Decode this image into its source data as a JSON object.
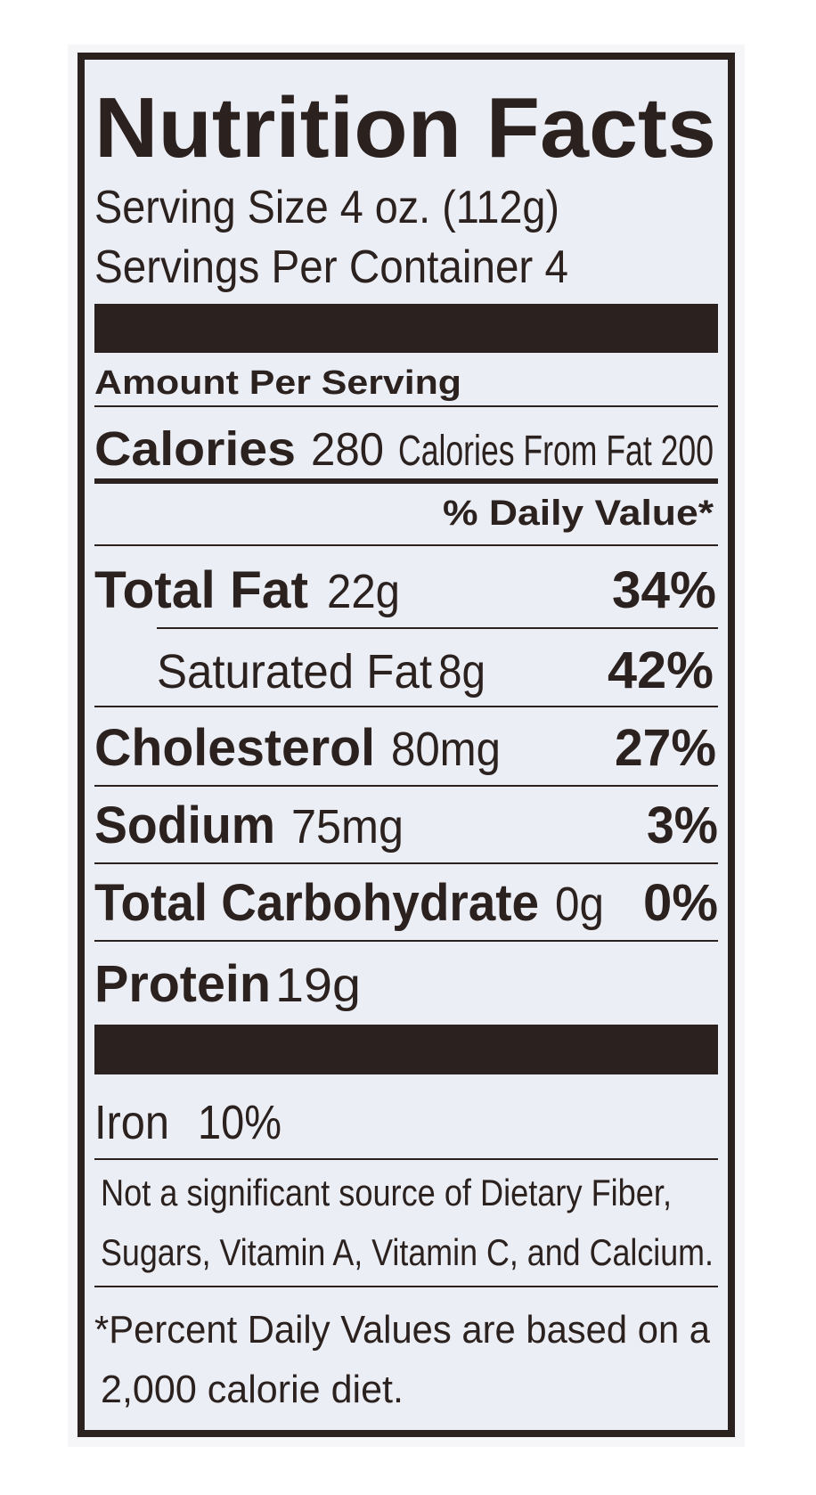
{
  "title": "Nutrition Facts",
  "serving_size": "Serving Size 4 oz. (112g)",
  "servings_per_container": "Servings Per Container 4",
  "amount_per_serving": "Amount Per Serving",
  "calories": {
    "label": "Calories",
    "amount": "280",
    "from_fat": "Calories From Fat 200"
  },
  "daily_value_header": "% Daily Value*",
  "nutrients": [
    {
      "name": "Total Fat",
      "amount": "22g",
      "daily_value": "34%"
    },
    {
      "name": "Saturated Fat",
      "amount": "8g",
      "daily_value": "42%"
    },
    {
      "name": "Cholesterol",
      "amount": "80mg",
      "daily_value": "27%"
    },
    {
      "name": "Sodium",
      "amount": "75mg",
      "daily_value": "3%"
    },
    {
      "name": "Total Carbohydrate",
      "amount": "0g",
      "daily_value": "0%"
    },
    {
      "name": "Protein",
      "amount": "19g"
    }
  ],
  "vitamins": [
    {
      "name": "Iron",
      "daily_value": "10%"
    }
  ],
  "note": [
    "Not a significant source of Dietary Fiber,",
    "Sugars, Vitamin A, Vitamin C, and Calcium."
  ],
  "footnote": [
    "*Percent Daily Values are based on a",
    "2,000 calorie diet."
  ]
}
